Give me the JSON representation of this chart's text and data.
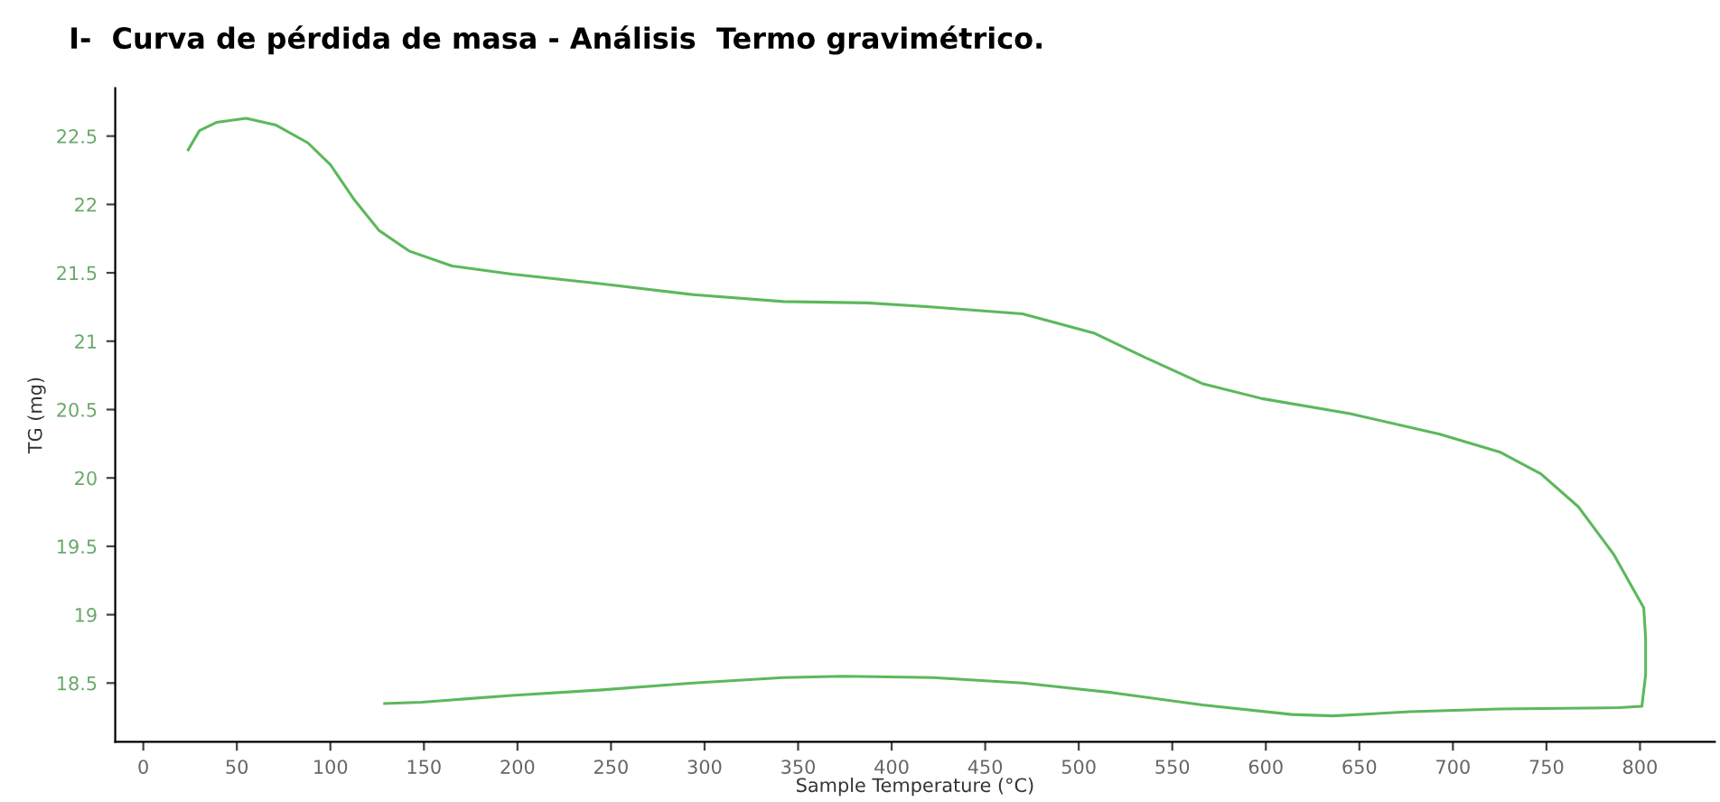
{
  "chart_data": {
    "type": "line",
    "title": "I-  Curva de pérdida de masa - Análisis  Termo gravimétrico.",
    "xlabel": "Sample Temperature (°C)",
    "ylabel": "TG (mg)",
    "xlim": [
      -15,
      840
    ],
    "ylim": [
      18.07,
      22.85
    ],
    "xticks": [
      0,
      50,
      100,
      150,
      200,
      250,
      300,
      350,
      400,
      450,
      500,
      550,
      600,
      650,
      700,
      750,
      800
    ],
    "yticks": [
      18.5,
      19,
      19.5,
      20,
      20.5,
      21,
      21.5,
      22,
      22.5
    ],
    "grid": false,
    "marker": "none",
    "line_style": "solid",
    "series": [
      {
        "color": "#5cb85c",
        "x": [
          24,
          30,
          39,
          55,
          71,
          88,
          100,
          113,
          126,
          142,
          165,
          197,
          245,
          294,
          342,
          387,
          422,
          470,
          508,
          534,
          566,
          598,
          645,
          693,
          725,
          747,
          767,
          786,
          795,
          802,
          803,
          803,
          801,
          789,
          725,
          677,
          636,
          614,
          566,
          518,
          470,
          422,
          374,
          342,
          294,
          245,
          197,
          149,
          129
        ],
        "values": [
          22.4,
          22.54,
          22.6,
          22.63,
          22.58,
          22.45,
          22.29,
          22.03,
          21.81,
          21.66,
          21.55,
          21.49,
          21.42,
          21.34,
          21.29,
          21.28,
          21.25,
          21.2,
          21.06,
          20.89,
          20.69,
          20.58,
          20.47,
          20.32,
          20.19,
          20.03,
          19.79,
          19.44,
          19.22,
          19.05,
          18.83,
          18.56,
          18.33,
          18.32,
          18.31,
          18.29,
          18.26,
          18.27,
          18.34,
          18.43,
          18.5,
          18.54,
          18.55,
          18.54,
          18.5,
          18.45,
          18.41,
          18.36,
          18.35
        ]
      }
    ]
  }
}
